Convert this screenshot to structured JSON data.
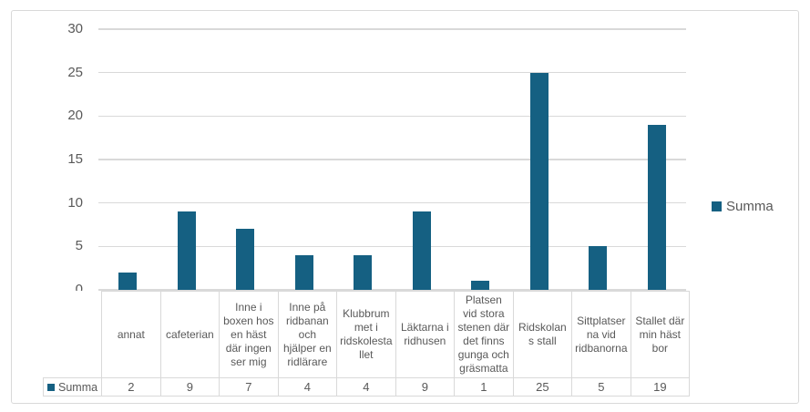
{
  "colors": {
    "bar": "#156082",
    "gridline": "#D9D9D9",
    "border": "#D9D9D9",
    "axis_text": "#595959",
    "table_text": "#595959"
  },
  "chart_data": {
    "type": "bar",
    "title": "",
    "legend": "Summa",
    "legend_position": "right",
    "grid": true,
    "data_table_shown": true,
    "categories": [
      "annat",
      "cafeterian",
      "Inne i boxen hos en häst där ingen ser mig",
      "Inne på ridbanan och hjälper en ridlärare",
      "Klubbrummet i ridskolestallet",
      "Läktarna i ridhusen",
      "Platsen vid stora stenen där det finns gunga och gräsmatta",
      "Ridskolans stall",
      "Sittplatserna vid ridbanorna",
      "Stallet där min häst bor"
    ],
    "values": [
      2,
      9,
      7,
      4,
      4,
      9,
      1,
      25,
      5,
      19
    ],
    "series": [
      {
        "name": "Summa",
        "values": [
          2,
          9,
          7,
          4,
          4,
          9,
          1,
          25,
          5,
          19
        ]
      }
    ],
    "xlabel": "",
    "ylabel": "",
    "ylim": [
      0,
      30
    ],
    "yticks": [
      0,
      5,
      10,
      15,
      20,
      25,
      30
    ]
  }
}
